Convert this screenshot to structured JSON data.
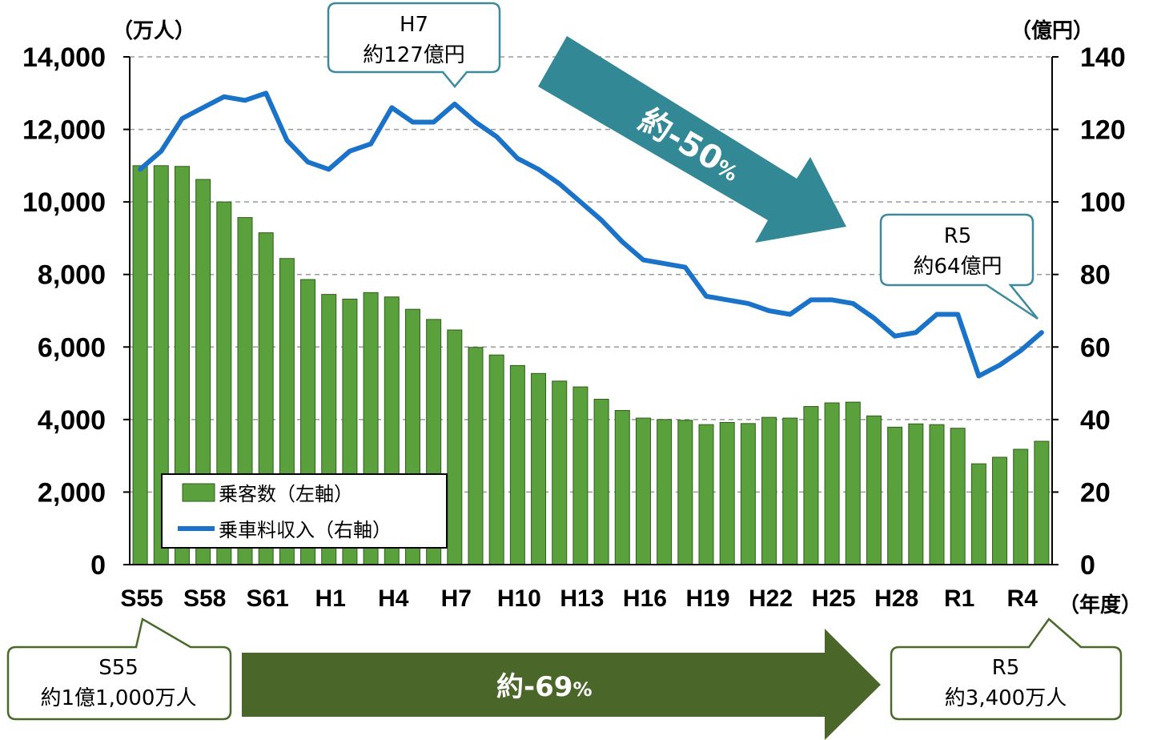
{
  "chart_data": {
    "type": "bar",
    "categories": [
      "S55",
      "S56",
      "S57",
      "S58",
      "S59",
      "S60",
      "S61",
      "S62",
      "S63",
      "H1",
      "H2",
      "H3",
      "H4",
      "H5",
      "H6",
      "H7",
      "H8",
      "H9",
      "H10",
      "H11",
      "H12",
      "H13",
      "H14",
      "H15",
      "H16",
      "H17",
      "H18",
      "H19",
      "H20",
      "H21",
      "H22",
      "H23",
      "H24",
      "H25",
      "H26",
      "H27",
      "H28",
      "H29",
      "H30",
      "R1",
      "R2",
      "R3",
      "R4",
      "R5"
    ],
    "x_tick_labels": [
      "S55",
      "S58",
      "S61",
      "H1",
      "H4",
      "H7",
      "H10",
      "H13",
      "H16",
      "H19",
      "H22",
      "H25",
      "H28",
      "R1",
      "R4"
    ],
    "xlabel": "（年度）",
    "y_left": {
      "label": "（万人）",
      "ylim": [
        0,
        14000
      ],
      "ticks": [
        "0",
        "2,000",
        "4,000",
        "6,000",
        "8,000",
        "10,000",
        "12,000",
        "14,000"
      ]
    },
    "y_right": {
      "label": "（億円）",
      "ylim": [
        0,
        140
      ],
      "ticks": [
        "0",
        "20",
        "40",
        "60",
        "80",
        "100",
        "120",
        "140"
      ]
    },
    "grid": true,
    "series": [
      {
        "name": "乗客数（左軸）",
        "type": "bar",
        "axis": "left",
        "color": "#5aa03c",
        "values": [
          11000,
          11000,
          10980,
          10620,
          10000,
          9570,
          9150,
          8440,
          7860,
          7450,
          7320,
          7500,
          7380,
          7040,
          6760,
          6470,
          5990,
          5780,
          5490,
          5270,
          5060,
          4900,
          4560,
          4250,
          4040,
          4000,
          3980,
          3860,
          3920,
          3890,
          4060,
          4040,
          4360,
          4460,
          4480,
          4100,
          3790,
          3880,
          3860,
          3760,
          2780,
          2960,
          3180,
          3400
        ]
      },
      {
        "name": "乗車料収入（右軸）",
        "type": "line",
        "axis": "right",
        "color": "#1a73c8",
        "values": [
          109,
          114,
          123,
          126,
          129,
          128,
          130,
          117,
          111,
          109,
          114,
          116,
          126,
          122,
          122,
          127,
          122,
          118,
          112,
          109,
          105,
          100,
          95,
          89,
          84,
          83,
          82,
          74,
          73,
          72,
          70,
          69,
          73,
          73,
          72,
          68,
          63,
          64,
          69,
          69,
          52,
          55,
          59,
          64
        ]
      }
    ],
    "legend_position": "lower-left",
    "annotations": {
      "top_callout": {
        "line1": "H7",
        "line2": "約127億円"
      },
      "right_callout": {
        "line1": "R5",
        "line2": "約64億円"
      },
      "bottom_left_callout": {
        "line1": "S55",
        "line2": "約1億1,000万人"
      },
      "bottom_right_callout": {
        "line1": "R5",
        "line2": "約3,400万人"
      },
      "revenue_change": {
        "prefix": "約",
        "value": "-50",
        "suffix": "%"
      },
      "passenger_change": {
        "prefix": "約",
        "value": "-69",
        "suffix": "%"
      }
    },
    "colors": {
      "callout_border": "#3d8a9a",
      "callout_border_green": "#4a6a2c",
      "arrow_teal": "#338896",
      "arrow_green": "#4a6628"
    }
  }
}
